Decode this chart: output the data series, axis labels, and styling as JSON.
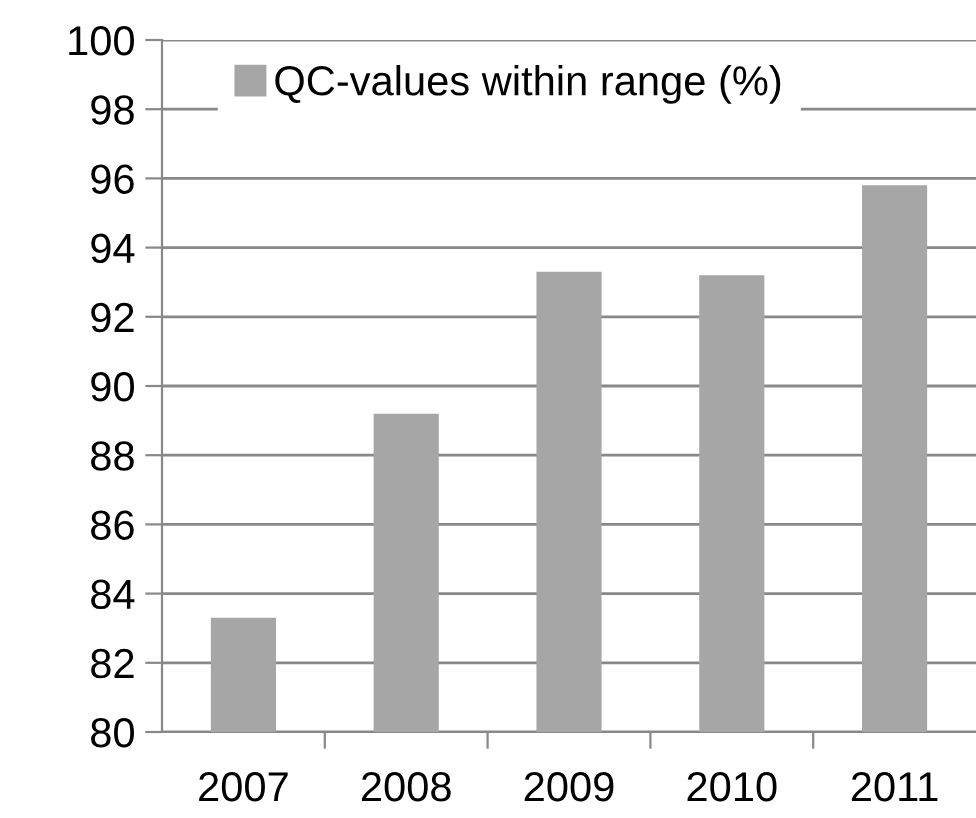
{
  "chart_data": {
    "type": "bar",
    "categories": [
      "2007",
      "2008",
      "2009",
      "2010",
      "2011"
    ],
    "series": [
      {
        "name": "QC-values within range (%)",
        "color": "#a6a6a6",
        "values": [
          83.3,
          89.2,
          93.3,
          93.2,
          95.8
        ]
      }
    ],
    "ylim": [
      80,
      100
    ],
    "yticks": [
      80,
      82,
      84,
      86,
      88,
      90,
      92,
      94,
      96,
      98,
      100
    ],
    "grid": "y",
    "legend": "top left"
  }
}
